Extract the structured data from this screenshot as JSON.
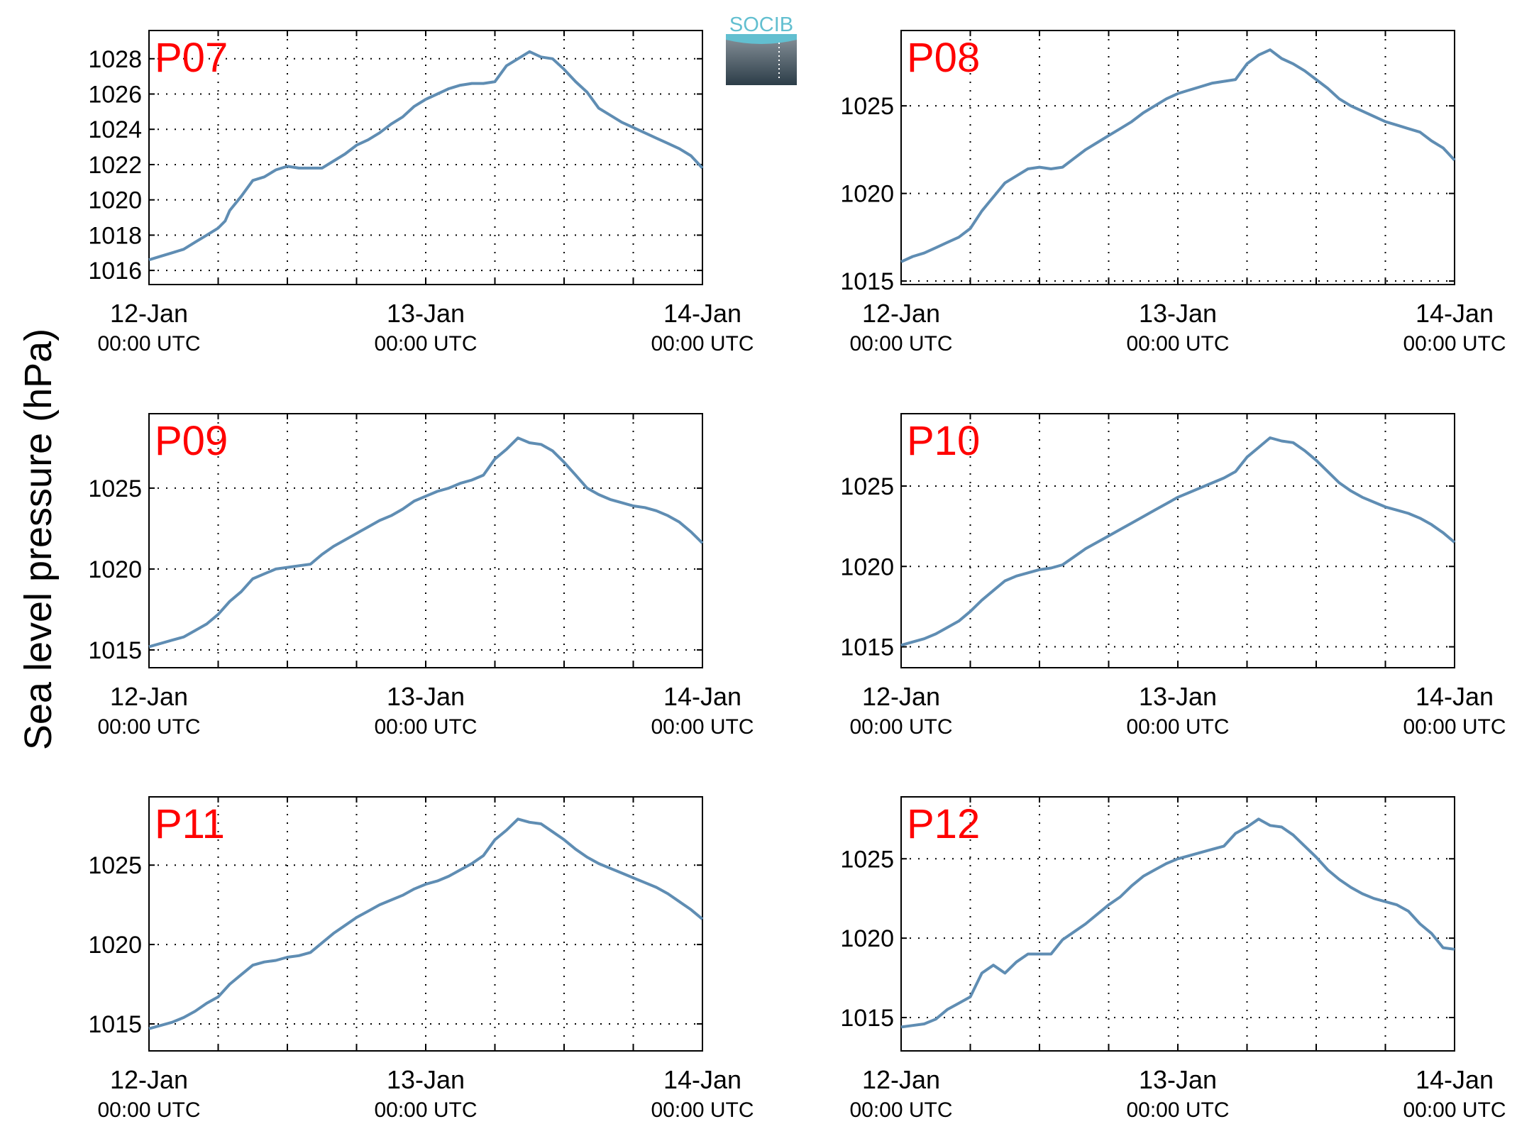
{
  "figure": {
    "ylabel": "Sea level pressure (hPa)",
    "logo_text": "SOCIB",
    "colors": {
      "line": "#5f8db3",
      "panel_label": "#ff0000",
      "axis": "#000000",
      "grid": "#000000",
      "logo_top": "#62bfd0",
      "logo_bottom": "#2c3d48"
    }
  },
  "chart_data": [
    {
      "type": "line",
      "title": "P07",
      "x_ticks": [
        {
          "date": "12-Jan",
          "time": "00:00 UTC"
        },
        {
          "date": "13-Jan",
          "time": "00:00 UTC"
        },
        {
          "date": "14-Jan",
          "time": "00:00 UTC"
        }
      ],
      "x_unit": "hours since 12-Jan 00:00 UTC",
      "xlim": [
        0,
        48
      ],
      "ylim": [
        1015.2,
        1029.6
      ],
      "yticks": [
        1016,
        1018,
        1020,
        1022,
        1024,
        1026,
        1028
      ],
      "grid": true,
      "series": [
        {
          "x": [
            0,
            1,
            2,
            3,
            4,
            5,
            6,
            6.6,
            7,
            8,
            9,
            10,
            11,
            12,
            13,
            14,
            15,
            16,
            17,
            18,
            19,
            20,
            21,
            22,
            23,
            24,
            25,
            26,
            27,
            28,
            29,
            30,
            31,
            32,
            33,
            34,
            35,
            36,
            37,
            38,
            39,
            40,
            41,
            42,
            43,
            44,
            45,
            46,
            47,
            48
          ],
          "y": [
            1016.6,
            1016.8,
            1017.0,
            1017.2,
            1017.6,
            1018.0,
            1018.4,
            1018.8,
            1019.4,
            1020.2,
            1021.1,
            1021.3,
            1021.7,
            1021.9,
            1021.8,
            1021.8,
            1021.8,
            1022.2,
            1022.6,
            1023.1,
            1023.4,
            1023.8,
            1024.3,
            1024.7,
            1025.3,
            1025.7,
            1026.0,
            1026.3,
            1026.5,
            1026.6,
            1026.6,
            1026.7,
            1027.6,
            1028.0,
            1028.4,
            1028.1,
            1028.0,
            1027.4,
            1026.7,
            1026.1,
            1025.2,
            1024.8,
            1024.4,
            1024.1,
            1023.8,
            1023.5,
            1023.2,
            1022.9,
            1022.5,
            1021.8
          ]
        }
      ]
    },
    {
      "type": "line",
      "title": "P08",
      "x_ticks": [
        {
          "date": "12-Jan",
          "time": "00:00 UTC"
        },
        {
          "date": "13-Jan",
          "time": "00:00 UTC"
        },
        {
          "date": "14-Jan",
          "time": "00:00 UTC"
        }
      ],
      "x_unit": "hours since 12-Jan 00:00 UTC",
      "xlim": [
        0,
        48
      ],
      "ylim": [
        1014.8,
        1029.3
      ],
      "yticks": [
        1015,
        1020,
        1025
      ],
      "grid": true,
      "series": [
        {
          "x": [
            0,
            1,
            2,
            3,
            4,
            5,
            6,
            7,
            8,
            9,
            10,
            11,
            12,
            13,
            14,
            15,
            16,
            17,
            18,
            19,
            20,
            21,
            22,
            23,
            24,
            25,
            26,
            27,
            28,
            29,
            30,
            31,
            32,
            33,
            34,
            35,
            36,
            37,
            38,
            39,
            40,
            41,
            42,
            43,
            44,
            45,
            46,
            47,
            48
          ],
          "y": [
            1016.1,
            1016.4,
            1016.6,
            1016.9,
            1017.2,
            1017.5,
            1018.0,
            1019.0,
            1019.8,
            1020.6,
            1021.0,
            1021.4,
            1021.5,
            1021.4,
            1021.5,
            1022.0,
            1022.5,
            1022.9,
            1023.3,
            1023.7,
            1024.1,
            1024.6,
            1025.0,
            1025.4,
            1025.7,
            1025.9,
            1026.1,
            1026.3,
            1026.4,
            1026.5,
            1027.4,
            1027.9,
            1028.2,
            1027.7,
            1027.4,
            1027.0,
            1026.5,
            1026.0,
            1025.4,
            1025.0,
            1024.7,
            1024.4,
            1024.1,
            1023.9,
            1023.7,
            1023.5,
            1023.0,
            1022.6,
            1021.9
          ]
        }
      ]
    },
    {
      "type": "line",
      "title": "P09",
      "x_ticks": [
        {
          "date": "12-Jan",
          "time": "00:00 UTC"
        },
        {
          "date": "13-Jan",
          "time": "00:00 UTC"
        },
        {
          "date": "14-Jan",
          "time": "00:00 UTC"
        }
      ],
      "x_unit": "hours since 12-Jan 00:00 UTC",
      "xlim": [
        0,
        48
      ],
      "ylim": [
        1013.9,
        1029.6
      ],
      "yticks": [
        1015,
        1020,
        1025
      ],
      "grid": true,
      "series": [
        {
          "x": [
            0,
            1,
            2,
            3,
            4,
            5,
            6,
            7,
            8,
            9,
            10,
            11,
            12,
            13,
            14,
            15,
            16,
            17,
            18,
            19,
            20,
            21,
            22,
            23,
            24,
            25,
            26,
            27,
            28,
            29,
            30,
            31,
            32,
            33,
            34,
            35,
            36,
            37,
            38,
            39,
            40,
            41,
            42,
            43,
            44,
            45,
            46,
            47,
            48
          ],
          "y": [
            1015.2,
            1015.4,
            1015.6,
            1015.8,
            1016.2,
            1016.6,
            1017.2,
            1018.0,
            1018.6,
            1019.4,
            1019.7,
            1020.0,
            1020.1,
            1020.2,
            1020.3,
            1020.9,
            1021.4,
            1021.8,
            1022.2,
            1022.6,
            1023.0,
            1023.3,
            1023.7,
            1024.2,
            1024.5,
            1024.8,
            1025.0,
            1025.3,
            1025.5,
            1025.8,
            1026.8,
            1027.4,
            1028.1,
            1027.8,
            1027.7,
            1027.3,
            1026.6,
            1025.8,
            1025.0,
            1024.6,
            1024.3,
            1024.1,
            1023.9,
            1023.8,
            1023.6,
            1023.3,
            1022.9,
            1022.3,
            1021.6
          ]
        }
      ]
    },
    {
      "type": "line",
      "title": "P10",
      "x_ticks": [
        {
          "date": "12-Jan",
          "time": "00:00 UTC"
        },
        {
          "date": "13-Jan",
          "time": "00:00 UTC"
        },
        {
          "date": "14-Jan",
          "time": "00:00 UTC"
        }
      ],
      "x_unit": "hours since 12-Jan 00:00 UTC",
      "xlim": [
        0,
        48
      ],
      "ylim": [
        1013.7,
        1029.5
      ],
      "yticks": [
        1015,
        1020,
        1025
      ],
      "grid": true,
      "series": [
        {
          "x": [
            0,
            1,
            2,
            3,
            4,
            5,
            6,
            7,
            8,
            9,
            10,
            11,
            12,
            13,
            14,
            15,
            16,
            17,
            18,
            19,
            20,
            21,
            22,
            23,
            24,
            25,
            26,
            27,
            28,
            29,
            30,
            31,
            32,
            33,
            34,
            35,
            36,
            37,
            38,
            39,
            40,
            41,
            42,
            43,
            44,
            45,
            46,
            47,
            48
          ],
          "y": [
            1015.1,
            1015.3,
            1015.5,
            1015.8,
            1016.2,
            1016.6,
            1017.2,
            1017.9,
            1018.5,
            1019.1,
            1019.4,
            1019.6,
            1019.8,
            1019.9,
            1020.1,
            1020.6,
            1021.1,
            1021.5,
            1021.9,
            1022.3,
            1022.7,
            1023.1,
            1023.5,
            1023.9,
            1024.3,
            1024.6,
            1024.9,
            1025.2,
            1025.5,
            1025.9,
            1026.8,
            1027.4,
            1028.0,
            1027.8,
            1027.7,
            1027.2,
            1026.6,
            1025.9,
            1025.2,
            1024.7,
            1024.3,
            1024.0,
            1023.7,
            1023.5,
            1023.3,
            1023.0,
            1022.6,
            1022.1,
            1021.5
          ]
        }
      ]
    },
    {
      "type": "line",
      "title": "P11",
      "x_ticks": [
        {
          "date": "12-Jan",
          "time": "00:00 UTC"
        },
        {
          "date": "13-Jan",
          "time": "00:00 UTC"
        },
        {
          "date": "14-Jan",
          "time": "00:00 UTC"
        }
      ],
      "x_unit": "hours since 12-Jan 00:00 UTC",
      "xlim": [
        0,
        48
      ],
      "ylim": [
        1013.3,
        1029.3
      ],
      "yticks": [
        1015,
        1020,
        1025
      ],
      "grid": true,
      "series": [
        {
          "x": [
            0,
            1,
            2,
            3,
            4,
            5,
            6,
            7,
            8,
            9,
            10,
            11,
            12,
            13,
            14,
            15,
            16,
            17,
            18,
            19,
            20,
            21,
            22,
            23,
            24,
            25,
            26,
            27,
            28,
            29,
            30,
            31,
            32,
            33,
            34,
            35,
            36,
            37,
            38,
            39,
            40,
            41,
            42,
            43,
            44,
            45,
            46,
            47,
            48
          ],
          "y": [
            1014.7,
            1014.9,
            1015.1,
            1015.4,
            1015.8,
            1016.3,
            1016.7,
            1017.5,
            1018.1,
            1018.7,
            1018.9,
            1019.0,
            1019.2,
            1019.3,
            1019.5,
            1020.1,
            1020.7,
            1021.2,
            1021.7,
            1022.1,
            1022.5,
            1022.8,
            1023.1,
            1023.5,
            1023.8,
            1024.0,
            1024.3,
            1024.7,
            1025.1,
            1025.6,
            1026.6,
            1027.2,
            1027.9,
            1027.7,
            1027.6,
            1027.1,
            1026.6,
            1026.0,
            1025.5,
            1025.1,
            1024.8,
            1024.5,
            1024.2,
            1023.9,
            1023.6,
            1023.2,
            1022.7,
            1022.2,
            1021.6
          ]
        }
      ]
    },
    {
      "type": "line",
      "title": "P12",
      "x_ticks": [
        {
          "date": "12-Jan",
          "time": "00:00 UTC"
        },
        {
          "date": "13-Jan",
          "time": "00:00 UTC"
        },
        {
          "date": "14-Jan",
          "time": "00:00 UTC"
        }
      ],
      "x_unit": "hours since 12-Jan 00:00 UTC",
      "xlim": [
        0,
        48
      ],
      "ylim": [
        1012.9,
        1028.9
      ],
      "yticks": [
        1015,
        1020,
        1025
      ],
      "grid": true,
      "series": [
        {
          "x": [
            0,
            1,
            2,
            3,
            4,
            5,
            6,
            7,
            8,
            9,
            10,
            11,
            12,
            13,
            14,
            15,
            16,
            17,
            18,
            19,
            20,
            21,
            22,
            23,
            24,
            25,
            26,
            27,
            28,
            29,
            30,
            31,
            32,
            33,
            34,
            35,
            36,
            37,
            38,
            39,
            40,
            41,
            42,
            43,
            44,
            45,
            46,
            47,
            48
          ],
          "y": [
            1014.4,
            1014.5,
            1014.6,
            1014.9,
            1015.5,
            1015.9,
            1016.3,
            1017.8,
            1018.3,
            1017.8,
            1018.5,
            1019.0,
            1019.0,
            1019.0,
            1019.9,
            1020.4,
            1020.9,
            1021.5,
            1022.1,
            1022.6,
            1023.3,
            1023.9,
            1024.3,
            1024.7,
            1025.0,
            1025.2,
            1025.4,
            1025.6,
            1025.8,
            1026.6,
            1027.0,
            1027.5,
            1027.1,
            1027.0,
            1026.5,
            1025.8,
            1025.1,
            1024.3,
            1023.7,
            1023.2,
            1022.8,
            1022.5,
            1022.3,
            1022.1,
            1021.7,
            1020.9,
            1020.3,
            1019.4,
            1019.3
          ]
        }
      ]
    }
  ]
}
